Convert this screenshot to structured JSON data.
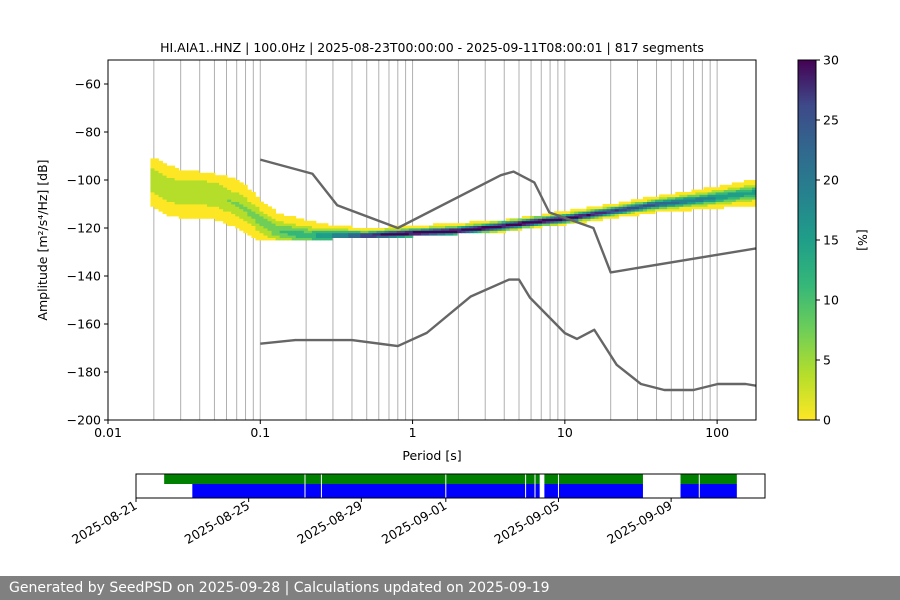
{
  "chart_data": {
    "type": "heatmap",
    "title": "HI.AIA1..HNZ | 100.0Hz | 2025-08-23T00:00:00 - 2025-09-11T08:00:01 | 817 segments",
    "xlabel": "Period [s]",
    "ylabel": "Amplitude [m²/s⁴/Hz] [dB]",
    "x_scale": "log",
    "xlim": [
      0.01,
      180
    ],
    "ylim": [
      -200,
      -50
    ],
    "x_ticks": [
      0.01,
      0.1,
      1,
      10,
      100
    ],
    "x_tick_labels": [
      "0.01",
      "0.1",
      "1",
      "10",
      "100"
    ],
    "y_ticks": [
      -200,
      -180,
      -160,
      -140,
      -120,
      -100,
      -80,
      -60
    ],
    "y_tick_labels": [
      "−200",
      "−180",
      "−160",
      "−140",
      "−120",
      "−100",
      "−80",
      "−60"
    ],
    "grid": true,
    "colorbar": {
      "label": "[%]",
      "range": [
        0,
        30
      ],
      "ticks": [
        0,
        5,
        10,
        15,
        20,
        25,
        30
      ],
      "colormap": "viridis_r"
    },
    "psd_band": [
      {
        "period": 0.019,
        "low": -118,
        "high": -91,
        "mode": -100
      },
      {
        "period": 0.022,
        "low": -119,
        "high": -92,
        "mode": -102
      },
      {
        "period": 0.025,
        "low": -120,
        "high": -94,
        "mode": -104
      },
      {
        "period": 0.03,
        "low": -122,
        "high": -96,
        "mode": -105
      },
      {
        "period": 0.04,
        "low": -123,
        "high": -97,
        "mode": -105
      },
      {
        "period": 0.05,
        "low": -124,
        "high": -98,
        "mode": -106
      },
      {
        "period": 0.06,
        "low": -124,
        "high": -99,
        "mode": -108
      },
      {
        "period": 0.08,
        "low": -125,
        "high": -101,
        "mode": -112
      },
      {
        "period": 0.1,
        "low": -125,
        "high": -104,
        "mode": -117
      },
      {
        "period": 0.13,
        "low": -125,
        "high": -108,
        "mode": -121
      },
      {
        "period": 0.2,
        "low": -125,
        "high": -111,
        "mode": -123
      },
      {
        "period": 0.3,
        "low": -124,
        "high": -115,
        "mode": -123
      },
      {
        "period": 0.5,
        "low": -124,
        "high": -118,
        "mode": -123
      },
      {
        "period": 1.0,
        "low": -123,
        "high": -119,
        "mode": -122
      },
      {
        "period": 2.0,
        "low": -122,
        "high": -118,
        "mode": -121
      },
      {
        "period": 4.0,
        "low": -121,
        "high": -117,
        "mode": -119
      },
      {
        "period": 7.0,
        "low": -119,
        "high": -115,
        "mode": -117
      },
      {
        "period": 10.0,
        "low": -118,
        "high": -113,
        "mode": -116
      },
      {
        "period": 20.0,
        "low": -116,
        "high": -110,
        "mode": -113
      },
      {
        "period": 40.0,
        "low": -114,
        "high": -107,
        "mode": -110
      },
      {
        "period": 80.0,
        "low": -112,
        "high": -103,
        "mode": -108
      },
      {
        "period": 180.0,
        "low": -110,
        "high": -98,
        "mode": -105
      }
    ],
    "series": [
      {
        "name": "",
        "color": "#666666",
        "points": [
          [
            0.1,
            -91.5
          ],
          [
            0.22,
            -97.4
          ],
          [
            0.32,
            -110.5
          ],
          [
            0.8,
            -120
          ],
          [
            3.8,
            -98
          ],
          [
            4.6,
            -96.5
          ],
          [
            6.3,
            -101
          ],
          [
            7.9,
            -113.5
          ],
          [
            15.4,
            -120
          ],
          [
            20,
            -138.5
          ],
          [
            180,
            -128.5
          ]
        ]
      },
      {
        "name": "",
        "color": "#666666",
        "points": [
          [
            0.1,
            -168.2
          ],
          [
            0.17,
            -166.7
          ],
          [
            0.4,
            -166.7
          ],
          [
            0.8,
            -169.2
          ],
          [
            1.24,
            -163.7
          ],
          [
            2.4,
            -148.6
          ],
          [
            4.3,
            -141.5
          ],
          [
            5.0,
            -141.5
          ],
          [
            5.9,
            -149
          ],
          [
            10,
            -163.8
          ],
          [
            12,
            -166.2
          ],
          [
            15.6,
            -162.4
          ],
          [
            21.9,
            -177
          ],
          [
            31.6,
            -185
          ],
          [
            45,
            -187.5
          ],
          [
            70,
            -187.5
          ],
          [
            101,
            -185
          ],
          [
            154,
            -185
          ],
          [
            180,
            -185.7
          ]
        ]
      }
    ],
    "time_axis": {
      "tick_labels": [
        "2025-08-21",
        "2025-08-25",
        "2025-08-29",
        "2025-09-01",
        "2025-09-05",
        "2025-09-09"
      ],
      "tick_dates": [
        "2025-08-21",
        "2025-08-25",
        "2025-08-29",
        "2025-09-01",
        "2025-09-05",
        "2025-09-09"
      ],
      "range": [
        "2025-08-21",
        "2025-09-12T08:00"
      ],
      "available_color": "#008000",
      "used_color": "#0000ff",
      "available_spans": [
        [
          "2025-08-22",
          "2025-09-04T08:00"
        ],
        [
          "2025-09-04T12:00",
          "2025-09-08T00:00"
        ],
        [
          "2025-09-09T08:00",
          "2025-09-11T08:00"
        ]
      ],
      "used_spans": [
        [
          "2025-08-23",
          "2025-09-04T08:00"
        ],
        [
          "2025-09-04T12:00",
          "2025-09-08T00:00"
        ],
        [
          "2025-09-09T08:00",
          "2025-09-11T08:00"
        ]
      ],
      "gaps": [
        "2025-08-27T00:00",
        "2025-08-27T14:00",
        "2025-09-01T00:00",
        "2025-09-03T20:00",
        "2025-09-04T04:00",
        "2025-09-05T00:00",
        "2025-09-10T00:00"
      ]
    }
  },
  "footer": {
    "text": "Generated by SeedPSD on 2025-09-28 | Calculations updated on 2025-09-19"
  }
}
